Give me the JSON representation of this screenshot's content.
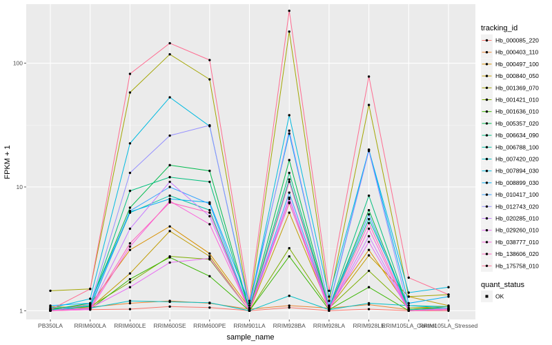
{
  "chart_data": {
    "type": "line",
    "xlabel": "sample_name",
    "ylabel": "FPKM + 1",
    "y_scale": "log10",
    "ylim": [
      0.85,
      300
    ],
    "y_ticks": [
      1,
      10,
      100
    ],
    "y_tick_labels": [
      "1",
      "10",
      "100"
    ],
    "grid": true,
    "legend_position": "right",
    "categories": [
      "PB350LA",
      "RRIM600LA",
      "RRIM600LE",
      "RRIM600SE",
      "RRIM600PE",
      "RRIM901LA",
      "RRIM928BA",
      "RRIM928LA",
      "RRIM928LE",
      "RRIM105LA_Control",
      "RRIM105LA_Stressed"
    ],
    "legend_color": {
      "title": "tracking_id",
      "entries": [
        "Hb_000085_220",
        "Hb_000403_110",
        "Hb_000497_100",
        "Hb_000840_050",
        "Hb_001369_070",
        "Hb_001421_010",
        "Hb_001636_010",
        "Hb_005357_020",
        "Hb_006634_090",
        "Hb_006788_100",
        "Hb_007420_020",
        "Hb_007894_030",
        "Hb_008899_030",
        "Hb_010417_100",
        "Hb_012743_020",
        "Hb_020285_010",
        "Hb_029260_010",
        "Hb_038777_010",
        "Hb_138606_020",
        "Hb_175758_010"
      ]
    },
    "legend_shape": {
      "title": "quant_status",
      "entries": [
        "OK"
      ]
    },
    "series": [
      {
        "name": "Hb_000085_220",
        "color": "#F8766D",
        "values": [
          1.0,
          1.02,
          1.03,
          1.08,
          1.06,
          1.0,
          1.06,
          1.0,
          1.03,
          1.0,
          1.0
        ]
      },
      {
        "name": "Hb_000403_110",
        "color": "#EA8331",
        "values": [
          1.05,
          1.07,
          1.15,
          1.2,
          1.15,
          1.03,
          1.1,
          1.05,
          1.12,
          1.02,
          1.05
        ]
      },
      {
        "name": "Hb_000497_100",
        "color": "#D89000",
        "values": [
          1.03,
          1.12,
          3.1,
          4.8,
          2.9,
          1.05,
          7.4,
          1.1,
          3.1,
          1.05,
          1.08
        ]
      },
      {
        "name": "Hb_000840_050",
        "color": "#C09B00",
        "values": [
          1.08,
          1.05,
          2.0,
          4.4,
          2.75,
          1.0,
          6.2,
          1.05,
          2.8,
          1.3,
          1.1
        ]
      },
      {
        "name": "Hb_001369_070",
        "color": "#A3A500",
        "values": [
          1.45,
          1.5,
          58.0,
          118.0,
          74.0,
          1.05,
          180.0,
          1.2,
          46.0,
          1.3,
          1.35
        ]
      },
      {
        "name": "Hb_001421_010",
        "color": "#7CAE00",
        "values": [
          1.02,
          1.08,
          1.7,
          2.75,
          2.6,
          1.0,
          3.2,
          1.05,
          2.1,
          1.05,
          1.05
        ]
      },
      {
        "name": "Hb_001636_010",
        "color": "#39B600",
        "values": [
          1.0,
          1.03,
          1.8,
          2.7,
          1.9,
          1.0,
          2.75,
          1.02,
          1.55,
          1.0,
          1.02
        ]
      },
      {
        "name": "Hb_005357_020",
        "color": "#00BB4E",
        "values": [
          1.02,
          1.15,
          6.8,
          15.0,
          13.5,
          1.02,
          16.5,
          1.05,
          6.5,
          1.02,
          1.05
        ]
      },
      {
        "name": "Hb_006634_090",
        "color": "#00BF7D",
        "values": [
          1.0,
          1.1,
          9.3,
          12.0,
          11.0,
          1.0,
          13.0,
          1.05,
          8.5,
          1.02,
          1.05
        ]
      },
      {
        "name": "Hb_006788_100",
        "color": "#00C1A3",
        "values": [
          1.05,
          1.08,
          6.2,
          8.5,
          6.5,
          1.0,
          11.5,
          1.05,
          5.5,
          1.1,
          1.08
        ]
      },
      {
        "name": "Hb_007420_020",
        "color": "#00BFC4",
        "values": [
          1.02,
          1.05,
          1.2,
          1.18,
          1.16,
          1.0,
          1.32,
          1.02,
          1.15,
          1.1,
          1.05
        ]
      },
      {
        "name": "Hb_007894_030",
        "color": "#00BAE0",
        "values": [
          1.05,
          1.25,
          22.5,
          53.0,
          31.0,
          1.1,
          38.0,
          1.3,
          20.0,
          1.4,
          1.55
        ]
      },
      {
        "name": "Hb_008899_030",
        "color": "#00B0F6",
        "values": [
          1.1,
          1.15,
          6.3,
          8.0,
          7.5,
          1.15,
          27.0,
          1.1,
          20.0,
          1.15,
          1.3
        ]
      },
      {
        "name": "Hb_010417_100",
        "color": "#35A2FF",
        "values": [
          1.0,
          1.05,
          6.4,
          10.0,
          7.3,
          1.0,
          9.0,
          1.05,
          6.0,
          1.0,
          1.02
        ]
      },
      {
        "name": "Hb_012743_020",
        "color": "#9590FF",
        "values": [
          1.0,
          1.12,
          13.0,
          26.0,
          31.5,
          1.05,
          28.5,
          1.08,
          19.5,
          1.0,
          1.05
        ]
      },
      {
        "name": "Hb_020285_010",
        "color": "#C77CFF",
        "values": [
          1.0,
          1.03,
          4.6,
          11.0,
          5.8,
          1.0,
          8.0,
          1.02,
          4.0,
          1.0,
          1.02
        ]
      },
      {
        "name": "Hb_029260_010",
        "color": "#E76BF3",
        "values": [
          1.0,
          1.05,
          1.55,
          2.45,
          2.65,
          1.0,
          8.2,
          1.02,
          3.6,
          1.0,
          1.02
        ]
      },
      {
        "name": "Hb_038777_010",
        "color": "#FA62DB",
        "values": [
          1.0,
          1.02,
          3.3,
          7.7,
          5.0,
          1.0,
          7.5,
          1.0,
          4.6,
          1.0,
          1.02
        ]
      },
      {
        "name": "Hb_138606_020",
        "color": "#FF62BC",
        "values": [
          1.0,
          1.05,
          3.5,
          7.5,
          6.2,
          1.0,
          11.0,
          1.03,
          5.1,
          1.0,
          1.03
        ]
      },
      {
        "name": "Hb_175758_010",
        "color": "#FF6C91",
        "values": [
          1.02,
          1.5,
          82.0,
          145.0,
          106.0,
          1.2,
          265.0,
          1.45,
          78.0,
          1.85,
          1.35
        ]
      }
    ]
  }
}
